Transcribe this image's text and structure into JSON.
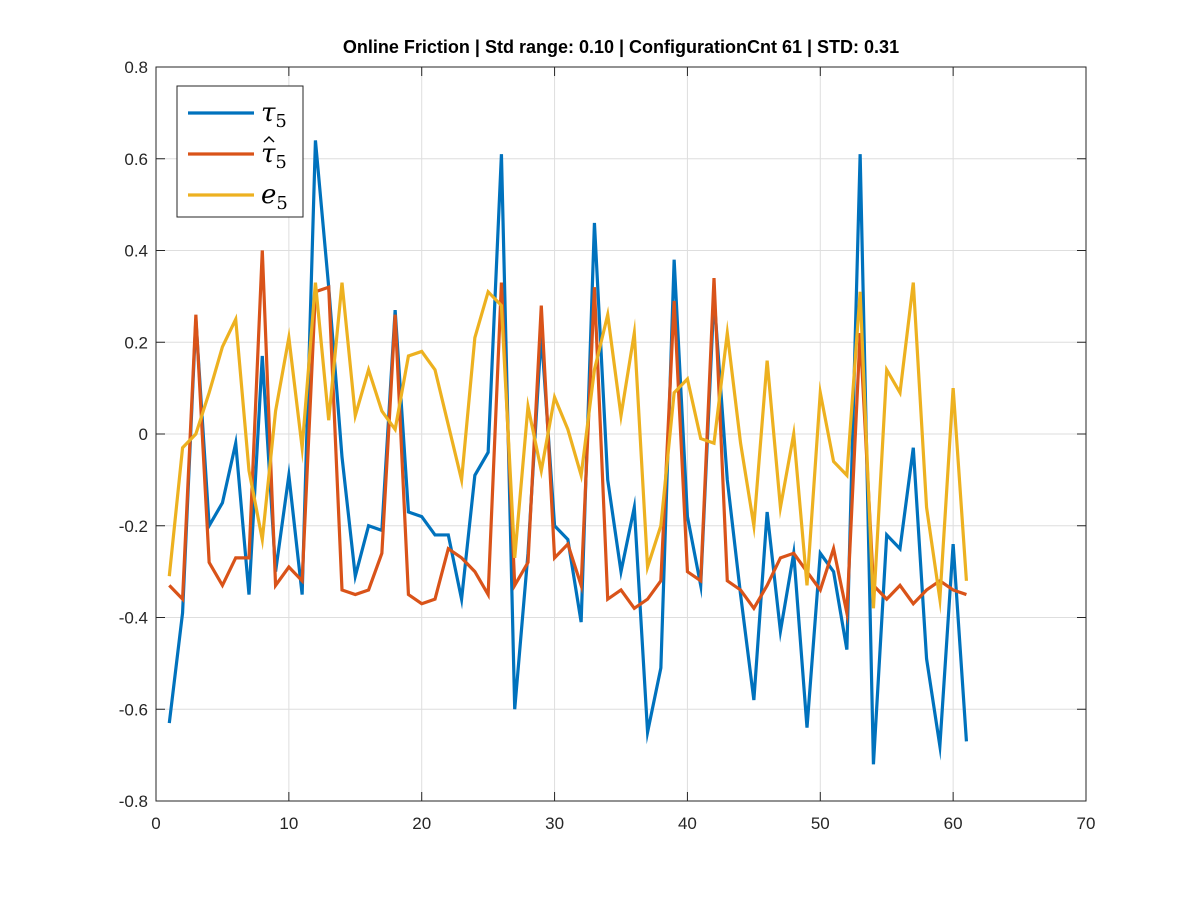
{
  "chart_data": {
    "type": "line",
    "title": "Online Friction | Std range: 0.10 | ConfigurationCnt 61 | STD: 0.31",
    "xlabel": "",
    "ylabel": "",
    "xlim": [
      0,
      70
    ],
    "ylim": [
      -0.8,
      0.8
    ],
    "xticks": [
      0,
      10,
      20,
      30,
      40,
      50,
      60,
      70
    ],
    "xtick_labels": [
      "0",
      "10",
      "20",
      "30",
      "40",
      "50",
      "60",
      "70"
    ],
    "yticks": [
      -0.8,
      -0.6,
      -0.4,
      -0.2,
      0,
      0.2,
      0.4,
      0.6,
      0.8
    ],
    "ytick_labels": [
      "-0.8",
      "-0.6",
      "-0.4",
      "-0.2",
      "0",
      "0.2",
      "0.4",
      "0.6",
      "0.8"
    ],
    "grid": true,
    "legend_position": "top-left",
    "x": [
      1,
      2,
      3,
      4,
      5,
      6,
      7,
      8,
      9,
      10,
      11,
      12,
      13,
      14,
      15,
      16,
      17,
      18,
      19,
      20,
      21,
      22,
      23,
      24,
      25,
      26,
      27,
      28,
      29,
      30,
      31,
      32,
      33,
      34,
      35,
      36,
      37,
      38,
      39,
      40,
      41,
      42,
      43,
      44,
      45,
      46,
      47,
      48,
      49,
      50,
      51,
      52,
      53,
      54,
      55,
      56,
      57,
      58,
      59,
      60,
      61
    ],
    "series": [
      {
        "name": "τ",
        "subscript": "5",
        "hat": false,
        "color": "#0072BD",
        "values": [
          -0.63,
          -0.39,
          0.25,
          -0.2,
          -0.15,
          -0.02,
          -0.35,
          0.17,
          -0.3,
          -0.09,
          -0.35,
          0.64,
          0.32,
          -0.05,
          -0.31,
          -0.2,
          -0.21,
          0.27,
          -0.17,
          -0.18,
          -0.22,
          -0.22,
          -0.36,
          -0.09,
          -0.04,
          0.61,
          -0.6,
          -0.26,
          0.22,
          -0.2,
          -0.23,
          -0.41,
          0.46,
          -0.1,
          -0.3,
          -0.16,
          -0.65,
          -0.51,
          0.38,
          -0.18,
          -0.33,
          0.3,
          -0.1,
          -0.35,
          -0.58,
          -0.17,
          -0.43,
          -0.26,
          -0.64,
          -0.26,
          -0.3,
          -0.47,
          0.61,
          -0.72,
          -0.22,
          -0.25,
          -0.03,
          -0.49,
          -0.68,
          -0.24,
          -0.67
        ]
      },
      {
        "name": "τ",
        "subscript": "5",
        "hat": true,
        "color": "#D95319",
        "values": [
          -0.33,
          -0.36,
          0.26,
          -0.28,
          -0.33,
          -0.27,
          -0.27,
          0.4,
          -0.33,
          -0.29,
          -0.32,
          0.31,
          0.32,
          -0.34,
          -0.35,
          -0.34,
          -0.26,
          0.26,
          -0.35,
          -0.37,
          -0.36,
          -0.25,
          -0.27,
          -0.3,
          -0.35,
          0.33,
          -0.33,
          -0.28,
          0.28,
          -0.27,
          -0.24,
          -0.33,
          0.32,
          -0.36,
          -0.34,
          -0.38,
          -0.36,
          -0.32,
          0.29,
          -0.3,
          -0.32,
          0.34,
          -0.32,
          -0.34,
          -0.38,
          -0.33,
          -0.27,
          -0.26,
          -0.3,
          -0.34,
          -0.25,
          -0.39,
          0.22,
          -0.33,
          -0.36,
          -0.33,
          -0.37,
          -0.34,
          -0.32,
          -0.34,
          -0.35
        ]
      },
      {
        "name": "e",
        "subscript": "5",
        "hat": false,
        "color": "#EDB120",
        "values": [
          -0.31,
          -0.03,
          0.0,
          0.09,
          0.19,
          0.25,
          -0.08,
          -0.23,
          0.05,
          0.21,
          -0.03,
          0.33,
          0.03,
          0.33,
          0.04,
          0.14,
          0.05,
          0.01,
          0.17,
          0.18,
          0.14,
          0.02,
          -0.1,
          0.21,
          0.31,
          0.28,
          -0.27,
          0.06,
          -0.08,
          0.08,
          0.01,
          -0.09,
          0.14,
          0.26,
          0.04,
          0.22,
          -0.29,
          -0.2,
          0.09,
          0.12,
          -0.01,
          -0.02,
          0.22,
          -0.02,
          -0.2,
          0.16,
          -0.16,
          0.0,
          -0.33,
          0.09,
          -0.06,
          -0.09,
          0.31,
          -0.38,
          0.14,
          0.09,
          0.33,
          -0.16,
          -0.36,
          0.1,
          -0.32
        ]
      }
    ]
  }
}
